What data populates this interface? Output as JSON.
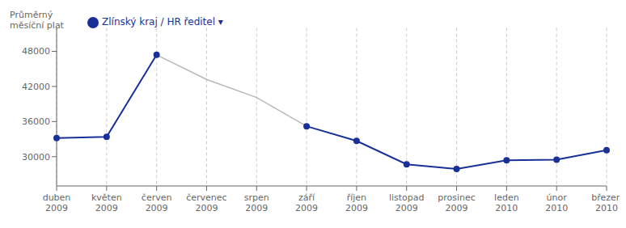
{
  "chart_data": {
    "type": "line",
    "ylabel": "Průměrný\nměsíční plat",
    "categories": [
      "duben\n2009",
      "květen\n2009",
      "červen\n2009",
      "červenec\n2009",
      "srpen\n2009",
      "září\n2009",
      "říjen\n2009",
      "listopad\n2009",
      "prosinec\n2009",
      "leden\n2010",
      "únor\n2010",
      "březen\n2010"
    ],
    "series": [
      {
        "color": "#b8b8b8",
        "marker": "none",
        "values": [
          null,
          null,
          47400,
          43200,
          40100,
          35200,
          null,
          null,
          null,
          null,
          null,
          null
        ]
      },
      {
        "name": "Zlínský kraj / HR ředitel ▾",
        "color": "#1a3099",
        "marker": "circle",
        "values": [
          33200,
          33400,
          47400,
          null,
          null,
          35200,
          32700,
          28700,
          27900,
          29400,
          29500,
          31100
        ]
      }
    ],
    "ylim": [
      25000,
      52000
    ],
    "yticks": [
      30000,
      36000,
      42000,
      48000
    ],
    "grid": "x",
    "legend": "upper left"
  }
}
